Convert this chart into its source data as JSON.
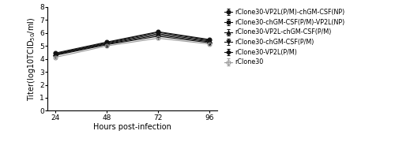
{
  "x": [
    24,
    48,
    72,
    96
  ],
  "series": [
    {
      "label": "rClone30-VP2L(P/M)-chGM-CSF(NP)",
      "values": [
        4.45,
        5.3,
        6.1,
        5.5
      ],
      "errors": [
        0.06,
        0.08,
        0.08,
        0.07
      ],
      "color": "#111111",
      "marker": "o",
      "markersize": 3.5,
      "linestyle": "-",
      "fillstyle": "full"
    },
    {
      "label": "rClone30-chGM-CSF(P/M)-VP2L(NP)",
      "values": [
        4.4,
        5.25,
        6.05,
        5.45
      ],
      "errors": [
        0.06,
        0.08,
        0.08,
        0.07
      ],
      "color": "#111111",
      "marker": "s",
      "markersize": 3.5,
      "linestyle": "-",
      "fillstyle": "full"
    },
    {
      "label": "rClone30-VP2L-chGM-CSF(P/M)",
      "values": [
        4.36,
        5.2,
        5.95,
        5.38
      ],
      "errors": [
        0.06,
        0.08,
        0.08,
        0.07
      ],
      "color": "#111111",
      "marker": "^",
      "markersize": 3.5,
      "linestyle": "-",
      "fillstyle": "full"
    },
    {
      "label": "rClone30-chGM-CSF(P/M)",
      "values": [
        4.32,
        5.15,
        5.85,
        5.32
      ],
      "errors": [
        0.06,
        0.08,
        0.08,
        0.07
      ],
      "color": "#111111",
      "marker": "v",
      "markersize": 3.5,
      "linestyle": "-",
      "fillstyle": "full"
    },
    {
      "label": "rClone30-VP2L(P/M)",
      "values": [
        4.27,
        5.1,
        5.75,
        5.25
      ],
      "errors": [
        0.06,
        0.08,
        0.08,
        0.07
      ],
      "color": "#111111",
      "marker": "D",
      "markersize": 3.0,
      "linestyle": "-",
      "fillstyle": "full"
    },
    {
      "label": "rClone30",
      "values": [
        4.12,
        5.0,
        5.6,
        5.15
      ],
      "errors": [
        0.06,
        0.08,
        0.08,
        0.07
      ],
      "color": "#999999",
      "marker": "o",
      "markersize": 3.5,
      "linestyle": "-",
      "fillstyle": "none"
    }
  ],
  "xlabel": "Hours post-infection",
  "ylabel": "Titer(log10TCID$_{50}$/ml)",
  "ylim": [
    0,
    8
  ],
  "yticks": [
    0,
    1,
    2,
    3,
    4,
    5,
    6,
    7,
    8
  ],
  "xticks": [
    24,
    48,
    72,
    96
  ],
  "background_color": "#ffffff",
  "legend_fontsize": 5.8,
  "axis_fontsize": 7,
  "tick_fontsize": 6.5
}
